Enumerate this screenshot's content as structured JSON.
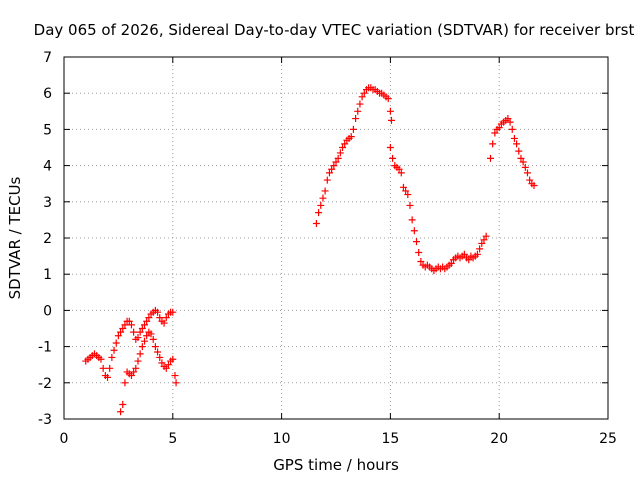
{
  "chart_data": {
    "type": "scatter",
    "title": "Day 065 of 2026, Sidereal Day-to-day VTEC variation (SDTVAR) for receiver brst",
    "xlabel": "GPS time / hours",
    "ylabel": "SDTVAR / TECUs",
    "xlim": [
      0,
      25
    ],
    "ylim": [
      -3,
      7
    ],
    "xticks": [
      0,
      5,
      10,
      15,
      20,
      25
    ],
    "yticks": [
      -3,
      -2,
      -1,
      0,
      1,
      2,
      3,
      4,
      5,
      6,
      7
    ],
    "xtick_labels": [
      "0",
      "5",
      "10",
      "15",
      "20",
      "25"
    ],
    "ytick_labels": [
      "-3",
      "-2",
      "-1",
      "0",
      "1",
      "2",
      "3",
      "4",
      "5",
      "6",
      "7"
    ],
    "grid": true,
    "marker": "plus",
    "color": "#ff0000",
    "series": [
      {
        "name": "segment-1",
        "x": [
          1.0,
          1.1,
          1.2,
          1.3,
          1.4,
          1.5,
          1.6,
          1.7,
          1.8,
          1.9,
          2.0,
          2.1,
          2.2,
          2.3,
          2.4,
          2.5,
          2.6,
          2.7,
          2.8,
          2.9,
          3.0,
          3.1,
          3.2,
          3.3,
          3.4,
          3.5,
          3.6,
          3.7,
          3.8,
          3.9,
          4.0,
          4.1,
          4.2,
          4.3,
          4.4,
          4.5,
          4.6,
          4.7,
          4.8,
          4.9,
          5.0
        ],
        "y": [
          -1.4,
          -1.35,
          -1.3,
          -1.25,
          -1.2,
          -1.25,
          -1.3,
          -1.35,
          -1.6,
          -1.8,
          -1.85,
          -1.6,
          -1.3,
          -1.1,
          -0.9,
          -0.7,
          -0.6,
          -0.5,
          -0.4,
          -0.3,
          -0.3,
          -0.4,
          -0.6,
          -0.8,
          -0.75,
          -0.6,
          -0.5,
          -0.4,
          -0.3,
          -0.2,
          -0.1,
          -0.05,
          0.0,
          -0.05,
          -0.2,
          -0.3,
          -0.35,
          -0.2,
          -0.1,
          -0.05,
          -0.05
        ]
      },
      {
        "name": "segment-2",
        "x": [
          2.6,
          2.7,
          2.8,
          2.9,
          3.0,
          3.1,
          3.2,
          3.3,
          3.4,
          3.5,
          3.6,
          3.7,
          3.8,
          3.9,
          4.0,
          4.1,
          4.2,
          4.3,
          4.4,
          4.5,
          4.6,
          4.7,
          4.8,
          4.9,
          5.0,
          5.1,
          5.15
        ],
        "y": [
          -2.8,
          -2.6,
          -2.0,
          -1.7,
          -1.75,
          -1.8,
          -1.7,
          -1.6,
          -1.4,
          -1.2,
          -1.0,
          -0.85,
          -0.7,
          -0.6,
          -0.65,
          -0.8,
          -1.0,
          -1.15,
          -1.3,
          -1.45,
          -1.55,
          -1.6,
          -1.5,
          -1.4,
          -1.35,
          -1.8,
          -2.0
        ]
      },
      {
        "name": "segment-3",
        "x": [
          11.6,
          11.7,
          11.8,
          11.9,
          12.0,
          12.1,
          12.2,
          12.3,
          12.4,
          12.5,
          12.6,
          12.7,
          12.8,
          12.9,
          13.0,
          13.1,
          13.2,
          13.3,
          13.4,
          13.5,
          13.6,
          13.7,
          13.8,
          13.9,
          14.0,
          14.1,
          14.2,
          14.3,
          14.4,
          14.5,
          14.6,
          14.7,
          14.8,
          14.9,
          15.0,
          15.05
        ],
        "y": [
          2.4,
          2.7,
          2.9,
          3.1,
          3.3,
          3.6,
          3.8,
          3.9,
          4.0,
          4.1,
          4.2,
          4.35,
          4.5,
          4.6,
          4.7,
          4.75,
          4.8,
          5.0,
          5.3,
          5.5,
          5.7,
          5.9,
          6.0,
          6.1,
          6.15,
          6.15,
          6.1,
          6.1,
          6.05,
          6.0,
          6.0,
          5.95,
          5.9,
          5.85,
          5.5,
          5.25
        ]
      },
      {
        "name": "segment-4",
        "x": [
          15.0,
          15.1,
          15.2,
          15.3,
          15.4,
          15.5,
          15.6,
          15.7,
          15.8,
          15.9,
          16.0,
          16.1,
          16.2,
          16.3,
          16.4,
          16.5,
          16.6,
          16.7,
          16.8,
          16.9,
          17.0,
          17.1,
          17.2,
          17.3,
          17.4,
          17.5,
          17.6,
          17.7,
          17.8,
          17.9,
          18.0,
          18.1,
          18.2,
          18.3,
          18.4,
          18.5,
          18.6,
          18.7,
          18.8,
          18.9,
          19.0,
          19.1,
          19.2,
          19.3,
          19.4
        ],
        "y": [
          4.5,
          4.2,
          4.0,
          3.95,
          3.9,
          3.8,
          3.4,
          3.3,
          3.2,
          2.9,
          2.5,
          2.2,
          1.9,
          1.6,
          1.35,
          1.25,
          1.2,
          1.25,
          1.2,
          1.15,
          1.1,
          1.15,
          1.2,
          1.15,
          1.2,
          1.15,
          1.2,
          1.25,
          1.3,
          1.4,
          1.45,
          1.5,
          1.45,
          1.5,
          1.55,
          1.45,
          1.4,
          1.5,
          1.45,
          1.5,
          1.55,
          1.7,
          1.85,
          1.95,
          2.05
        ]
      },
      {
        "name": "segment-5",
        "x": [
          19.6,
          19.7,
          19.8,
          19.9,
          20.0,
          20.1,
          20.2,
          20.3,
          20.4,
          20.5,
          20.6,
          20.7,
          20.8,
          20.9,
          21.0,
          21.1,
          21.2,
          21.3,
          21.4,
          21.5,
          21.6
        ],
        "y": [
          4.2,
          4.6,
          4.9,
          5.0,
          5.05,
          5.15,
          5.2,
          5.25,
          5.3,
          5.2,
          5.0,
          4.75,
          4.6,
          4.4,
          4.2,
          4.1,
          3.95,
          3.8,
          3.6,
          3.5,
          3.45
        ]
      }
    ]
  }
}
